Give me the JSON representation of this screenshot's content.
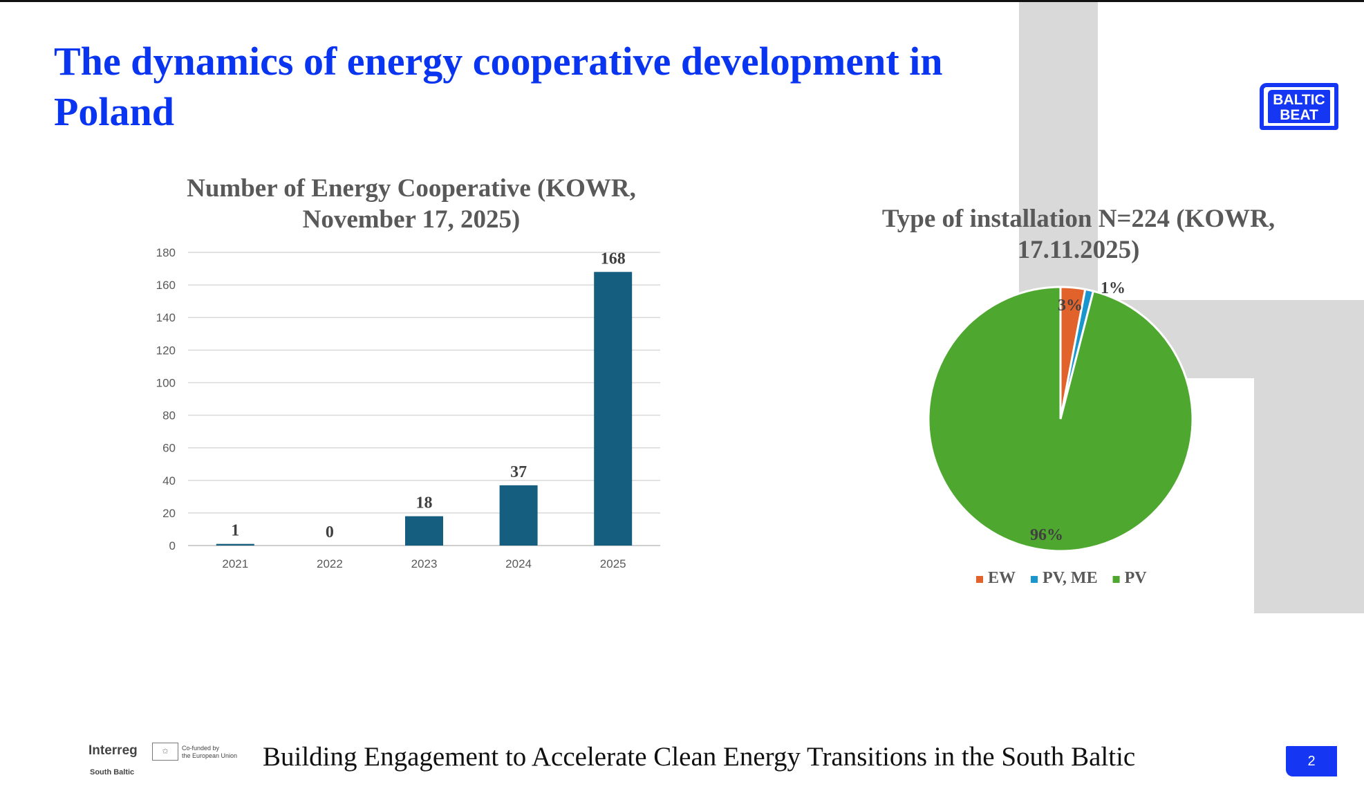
{
  "slide": {
    "title": "The dynamics of energy cooperative development in Poland",
    "footer": "Building Engagement to Accelerate Clean Energy Transitions in the South Baltic",
    "page_number": "2"
  },
  "logo": {
    "line1": "BALTIC",
    "line2": "BEAT"
  },
  "funding": {
    "program": "Interreg",
    "region": "South Baltic",
    "cofunded_line1": "Co-funded by",
    "cofunded_line2": "the European Union",
    "flag_icon": "eu-flag-icon"
  },
  "chart_data": [
    {
      "type": "bar",
      "title": "Number of Energy Cooperative (KOWR, November 17, 2025)",
      "categories": [
        "2021",
        "2022",
        "2023",
        "2024",
        "2025"
      ],
      "values": [
        1,
        0,
        18,
        37,
        168
      ],
      "data_labels": [
        "1",
        "0",
        "18",
        "37",
        "168"
      ],
      "yticks": [
        "0",
        "20",
        "40",
        "60",
        "80",
        "100",
        "120",
        "140",
        "160",
        "180"
      ],
      "ylim": [
        0,
        180
      ],
      "grid": true,
      "color": "#165e80"
    },
    {
      "type": "pie",
      "title": "Type of installation N=224 (KOWR, 17.11.2025)",
      "slices": [
        {
          "name": "EW",
          "value": 3,
          "label": "3%",
          "color": "#e2622b"
        },
        {
          "name": "PV, ME",
          "value": 1,
          "label": "1%",
          "color": "#1a96cf"
        },
        {
          "name": "PV",
          "value": 96,
          "label": "96%",
          "color": "#4ea72e"
        }
      ],
      "legend_position": "bottom"
    }
  ]
}
